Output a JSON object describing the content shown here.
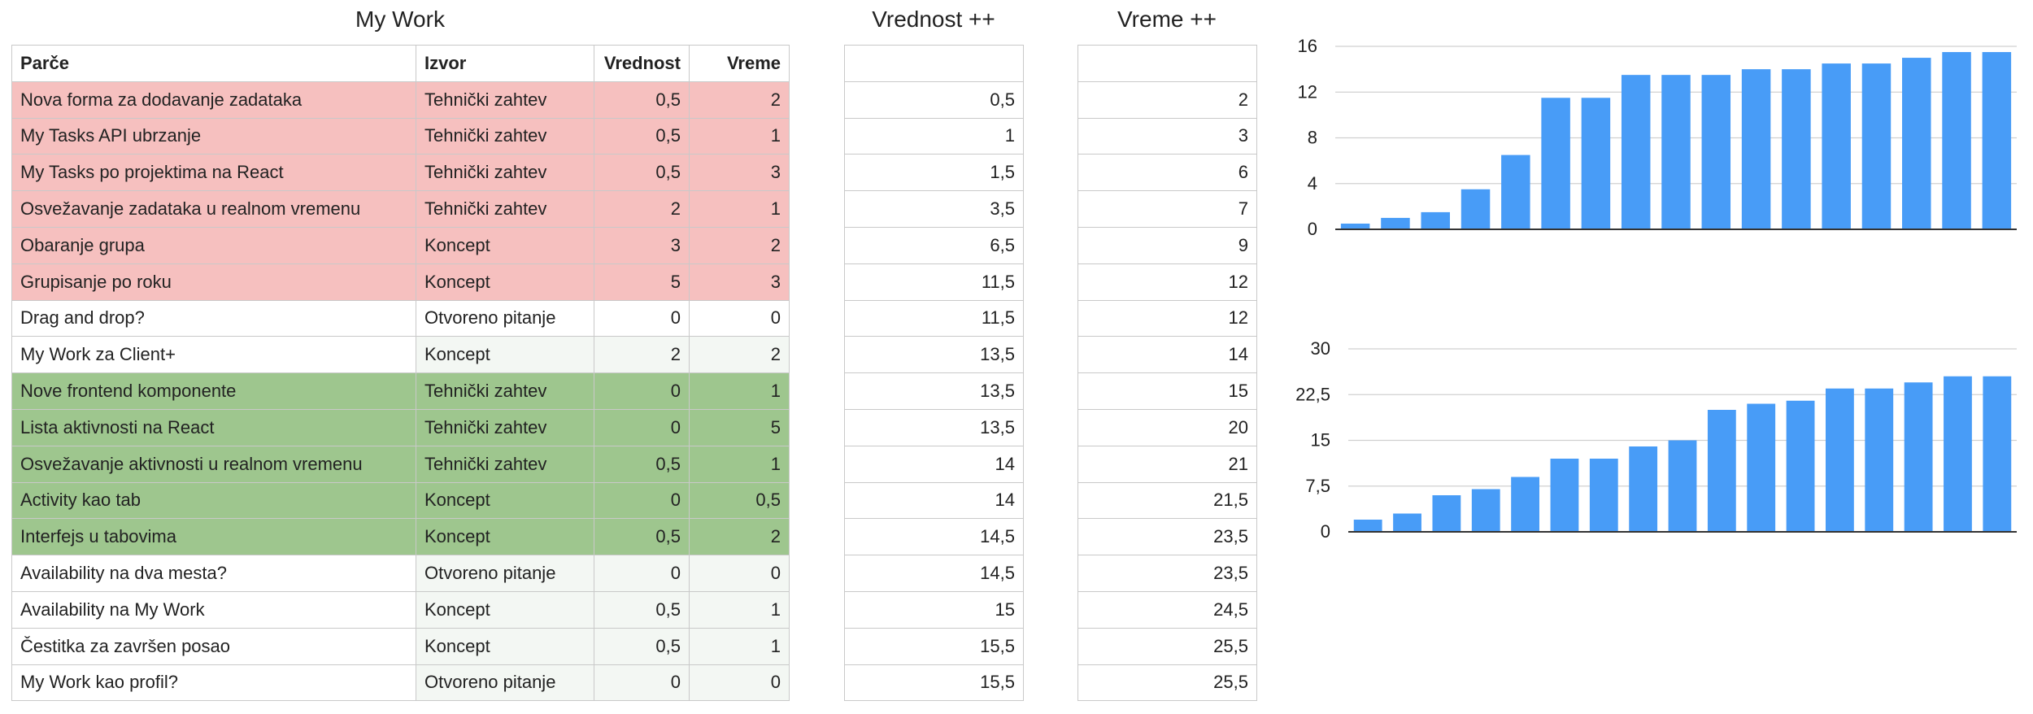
{
  "titles": {
    "main": "My Work",
    "vrednost": "Vrednost ++",
    "vreme": "Vreme ++"
  },
  "headers": {
    "parce": "Parče",
    "izvor": "Izvor",
    "vrednost": "Vrednost",
    "vreme": "Vreme"
  },
  "rows": [
    {
      "parce": "Nova forma za dodavanje zadataka",
      "izvor": "Tehnički zahtev",
      "vrednost": "0,5",
      "vreme": "2",
      "color": "red"
    },
    {
      "parce": "My Tasks API ubrzanje",
      "izvor": "Tehnički zahtev",
      "vrednost": "0,5",
      "vreme": "1",
      "color": "red"
    },
    {
      "parce": "My Tasks po projektima na React",
      "izvor": "Tehnički zahtev",
      "vrednost": "0,5",
      "vreme": "3",
      "color": "red"
    },
    {
      "parce": "Osvežavanje zadataka u realnom vremenu",
      "izvor": "Tehnički zahtev",
      "vrednost": "2",
      "vreme": "1",
      "color": "red"
    },
    {
      "parce": "Obaranje grupa",
      "izvor": "Koncept",
      "vrednost": "3",
      "vreme": "2",
      "color": "red"
    },
    {
      "parce": "Grupisanje po roku",
      "izvor": "Koncept",
      "vrednost": "5",
      "vreme": "3",
      "color": "red"
    },
    {
      "parce": "Drag and drop?",
      "izvor": "Otvoreno pitanje",
      "vrednost": "0",
      "vreme": "0",
      "color": "plain"
    },
    {
      "parce": "My Work za Client+",
      "izvor": "Koncept",
      "vrednost": "2",
      "vreme": "2",
      "color": "plain"
    },
    {
      "parce": "Nove frontend komponente",
      "izvor": "Tehnički zahtev",
      "vrednost": "0",
      "vreme": "1",
      "color": "green"
    },
    {
      "parce": "Lista aktivnosti na React",
      "izvor": "Tehnički zahtev",
      "vrednost": "0",
      "vreme": "5",
      "color": "green"
    },
    {
      "parce": "Osvežavanje aktivnosti u realnom vremenu",
      "izvor": "Tehnički zahtev",
      "vrednost": "0,5",
      "vreme": "1",
      "color": "green"
    },
    {
      "parce": "Activity kao tab",
      "izvor": "Koncept",
      "vrednost": "0",
      "vreme": "0,5",
      "color": "green"
    },
    {
      "parce": "Interfejs u tabovima",
      "izvor": "Koncept",
      "vrednost": "0,5",
      "vreme": "2",
      "color": "green"
    },
    {
      "parce": "Availability na dva mesta?",
      "izvor": "Otvoreno pitanje",
      "vrednost": "0",
      "vreme": "0",
      "color": "plain"
    },
    {
      "parce": "Availability na My Work",
      "izvor": "Koncept",
      "vrednost": "0,5",
      "vreme": "1",
      "color": "plain"
    },
    {
      "parce": "Čestitka za završen posao",
      "izvor": "Koncept",
      "vrednost": "0,5",
      "vreme": "1",
      "color": "plain"
    },
    {
      "parce": "My Work kao profil?",
      "izvor": "Otvoreno pitanje",
      "vrednost": "0",
      "vreme": "0",
      "color": "plain"
    }
  ],
  "cumulative_vrednost": [
    "0,5",
    "1",
    "1,5",
    "3,5",
    "6,5",
    "11,5",
    "11,5",
    "13,5",
    "13,5",
    "13,5",
    "14",
    "14",
    "14,5",
    "14,5",
    "15",
    "15,5",
    "15,5"
  ],
  "cumulative_vreme": [
    "2",
    "3",
    "6",
    "7",
    "9",
    "12",
    "12",
    "14",
    "15",
    "20",
    "21",
    "21,5",
    "23,5",
    "23,5",
    "24,5",
    "25,5",
    "25,5"
  ],
  "chart_data": [
    {
      "type": "bar",
      "values": [
        0.5,
        1,
        1.5,
        3.5,
        6.5,
        11.5,
        11.5,
        13.5,
        13.5,
        13.5,
        14,
        14,
        14.5,
        14.5,
        15,
        15.5,
        15.5
      ],
      "ylim": [
        0,
        16
      ],
      "yticks": [
        "0",
        "4",
        "8",
        "12",
        "16"
      ],
      "grid": true,
      "color": "#489cf7"
    },
    {
      "type": "bar",
      "values": [
        2,
        3,
        6,
        7,
        9,
        12,
        12,
        14,
        15,
        20,
        21,
        21.5,
        23.5,
        23.5,
        24.5,
        25.5,
        25.5
      ],
      "ylim": [
        0,
        30
      ],
      "yticks": [
        "0",
        "7,5",
        "15",
        "22,5",
        "30"
      ],
      "grid": true,
      "color": "#489cf7"
    }
  ],
  "colors": {
    "red_row": "#f6c0bf",
    "green_row": "#9ec68e",
    "bar": "#489cf7",
    "grid": "#d0d0d0"
  }
}
